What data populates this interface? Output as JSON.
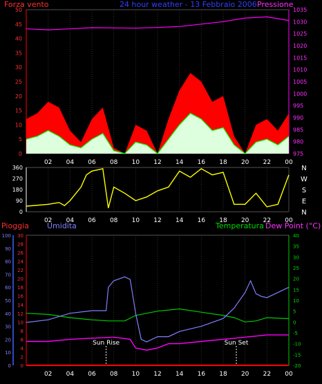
{
  "panels": {
    "wind": {
      "title": "24 hour weather - 13 Febbraio 2006",
      "left_label": "Forza vento",
      "right_label": "Pressione",
      "left_ticks": [
        "0",
        "5",
        "10",
        "15",
        "20",
        "25",
        "30",
        "35",
        "40",
        "45",
        "50"
      ],
      "right_ticks": [
        "975",
        "980",
        "985",
        "990",
        "995",
        "1000",
        "1005",
        "1010",
        "1015",
        "1020",
        "1025",
        "1030",
        "1035"
      ],
      "x_ticks": [
        "02",
        "04",
        "06",
        "08",
        "10",
        "12",
        "14",
        "16",
        "18",
        "20",
        "22",
        "00"
      ]
    },
    "direction": {
      "left_ticks": [
        "0",
        "90",
        "180",
        "270",
        "360"
      ],
      "compass": [
        "N",
        "W",
        "S",
        "E",
        "N"
      ],
      "x_ticks": [
        "02",
        "04",
        "06",
        "08",
        "10",
        "12",
        "14",
        "16",
        "18",
        "20",
        "22",
        "00"
      ]
    },
    "climate": {
      "rain_label": "Pioggia",
      "humidity_label": "Umidita",
      "temp_label": "Temperatura",
      "dew_label": "Dew Point (°C)",
      "humidity_ticks": [
        "0",
        "10",
        "20",
        "30",
        "40",
        "50",
        "60",
        "70",
        "80",
        "90",
        "100"
      ],
      "rain_ticks": [
        "0",
        "2",
        "4",
        "6",
        "8",
        "10",
        "12",
        "14",
        "16",
        "18",
        "20",
        "22",
        "24",
        "26",
        "28",
        "30"
      ],
      "temp_ticks": [
        "-20",
        "-15",
        "-10",
        "-5",
        "0",
        "5",
        "10",
        "15",
        "20",
        "25",
        "30",
        "35",
        "40"
      ],
      "sunrise": "Sun Rise",
      "sunset": "Sun Set",
      "x_ticks": [
        "02",
        "04",
        "06",
        "08",
        "10",
        "12",
        "14",
        "16",
        "18",
        "20",
        "22",
        "00"
      ]
    }
  },
  "colors": {
    "wind_gust": "#ff0000",
    "wind_avg": "#00ff00",
    "wind_light": "#ddffdd",
    "pressure": "#ff00ff",
    "direction": "#ffff00",
    "humidity": "#8080ff",
    "temperature": "#00cc00",
    "dewpoint": "#ff00ff",
    "rain": "#ff0000",
    "rain_axis": "#4060ff"
  },
  "chart_data": [
    {
      "type": "area",
      "panel": "wind",
      "x_unit": "hour",
      "left_ylim": [
        0,
        50
      ],
      "right_ylim": [
        975,
        1035
      ],
      "series": [
        {
          "axis": "left",
          "values": [
            [
              0,
              12
            ],
            [
              1,
              14
            ],
            [
              2,
              18
            ],
            [
              3,
              16
            ],
            [
              4,
              8
            ],
            [
              5,
              4
            ],
            [
              6,
              12
            ],
            [
              7,
              16
            ],
            [
              8,
              2
            ],
            [
              9,
              0
            ],
            [
              10,
              10
            ],
            [
              11,
              8
            ],
            [
              12,
              0
            ],
            [
              13,
              12
            ],
            [
              14,
              22
            ],
            [
              15,
              28
            ],
            [
              16,
              25
            ],
            [
              17,
              18
            ],
            [
              18,
              20
            ],
            [
              19,
              6
            ],
            [
              20,
              0
            ],
            [
              21,
              10
            ],
            [
              22,
              12
            ],
            [
              23,
              8
            ],
            [
              24,
              14
            ]
          ]
        },
        {
          "axis": "left",
          "values": [
            [
              0,
              5
            ],
            [
              1,
              6
            ],
            [
              2,
              8
            ],
            [
              3,
              6
            ],
            [
              4,
              3
            ],
            [
              5,
              2
            ],
            [
              6,
              5
            ],
            [
              7,
              7
            ],
            [
              8,
              1
            ],
            [
              9,
              0
            ],
            [
              10,
              4
            ],
            [
              11,
              3
            ],
            [
              12,
              0
            ],
            [
              13,
              5
            ],
            [
              14,
              10
            ],
            [
              15,
              14
            ],
            [
              16,
              12
            ],
            [
              17,
              8
            ],
            [
              18,
              9
            ],
            [
              19,
              3
            ],
            [
              20,
              0
            ],
            [
              21,
              4
            ],
            [
              22,
              5
            ],
            [
              23,
              3
            ],
            [
              24,
              6
            ]
          ]
        },
        {
          "name": "Pressione",
          "axis": "right",
          "values": [
            [
              0,
              1027
            ],
            [
              2,
              1026.6
            ],
            [
              4,
              1027
            ],
            [
              6,
              1027.5
            ],
            [
              8,
              1027.4
            ],
            [
              10,
              1027.3
            ],
            [
              12,
              1027.6
            ],
            [
              14,
              1028
            ],
            [
              16,
              1029
            ],
            [
              18,
              1030
            ],
            [
              20,
              1031.5
            ],
            [
              22,
              1032
            ],
            [
              24,
              1030.5
            ]
          ]
        }
      ]
    },
    {
      "type": "line",
      "panel": "direction",
      "x_unit": "hour",
      "ylim": [
        0,
        360
      ],
      "series": [
        {
          "values": [
            [
              0,
              45
            ],
            [
              2,
              60
            ],
            [
              3,
              75
            ],
            [
              3.5,
              50
            ],
            [
              4,
              90
            ],
            [
              5,
              200
            ],
            [
              5.5,
              300
            ],
            [
              6,
              330
            ],
            [
              7,
              350
            ],
            [
              7.5,
              30
            ],
            [
              8,
              200
            ],
            [
              9,
              150
            ],
            [
              10,
              90
            ],
            [
              11,
              120
            ],
            [
              12,
              170
            ],
            [
              13,
              200
            ],
            [
              14,
              330
            ],
            [
              15,
              280
            ],
            [
              16,
              350
            ],
            [
              17,
              300
            ],
            [
              18,
              320
            ],
            [
              19,
              60
            ],
            [
              20,
              60
            ],
            [
              21,
              150
            ],
            [
              22,
              40
            ],
            [
              23,
              60
            ],
            [
              24,
              300
            ]
          ]
        }
      ]
    },
    {
      "type": "line",
      "panel": "climate",
      "x_unit": "hour",
      "humidity_ylim": [
        0,
        100
      ],
      "rain_ylim": [
        0,
        30
      ],
      "temp_ylim": [
        -20,
        40
      ],
      "sunrise_hour": 7.3,
      "sunset_hour": 19.2,
      "series": [
        {
          "name": "Umidita",
          "axis": "humidity",
          "values": [
            [
              0,
              33
            ],
            [
              2,
              35
            ],
            [
              4,
              40
            ],
            [
              6,
              42
            ],
            [
              7.3,
              42
            ],
            [
              7.5,
              60
            ],
            [
              8,
              65
            ],
            [
              9,
              68
            ],
            [
              9.5,
              66
            ],
            [
              10,
              40
            ],
            [
              10.5,
              20
            ],
            [
              11,
              18
            ],
            [
              12,
              22
            ],
            [
              13,
              22
            ],
            [
              14,
              26
            ],
            [
              16,
              30
            ],
            [
              18,
              36
            ],
            [
              19,
              44
            ],
            [
              20,
              56
            ],
            [
              20.5,
              65
            ],
            [
              21,
              55
            ],
            [
              21.5,
              53
            ],
            [
              22,
              52
            ],
            [
              23,
              56
            ],
            [
              24,
              60
            ]
          ]
        },
        {
          "name": "Temperatura",
          "axis": "temp",
          "values": [
            [
              0,
              4
            ],
            [
              2,
              3.5
            ],
            [
              4,
              2
            ],
            [
              6,
              1
            ],
            [
              7.5,
              0.5
            ],
            [
              9,
              0.5
            ],
            [
              10,
              3
            ],
            [
              12,
              5
            ],
            [
              14,
              6
            ],
            [
              16,
              4.5
            ],
            [
              18,
              3
            ],
            [
              19,
              2
            ],
            [
              20,
              0
            ],
            [
              21,
              0.5
            ],
            [
              22,
              2
            ],
            [
              24,
              1.5
            ]
          ]
        },
        {
          "name": "Dew Point (°C)",
          "axis": "temp",
          "values": [
            [
              0,
              -9
            ],
            [
              2,
              -9
            ],
            [
              4,
              -8
            ],
            [
              6,
              -7.5
            ],
            [
              8,
              -7
            ],
            [
              9.5,
              -8
            ],
            [
              10,
              -12
            ],
            [
              11,
              -13
            ],
            [
              12,
              -12
            ],
            [
              13,
              -10
            ],
            [
              14,
              -10
            ],
            [
              16,
              -9
            ],
            [
              18,
              -8
            ],
            [
              20,
              -7
            ],
            [
              22,
              -6
            ],
            [
              24,
              -6
            ]
          ]
        },
        {
          "name": "Pioggia",
          "axis": "rain",
          "values": [
            [
              0,
              0
            ],
            [
              24,
              0
            ]
          ]
        }
      ]
    }
  ]
}
